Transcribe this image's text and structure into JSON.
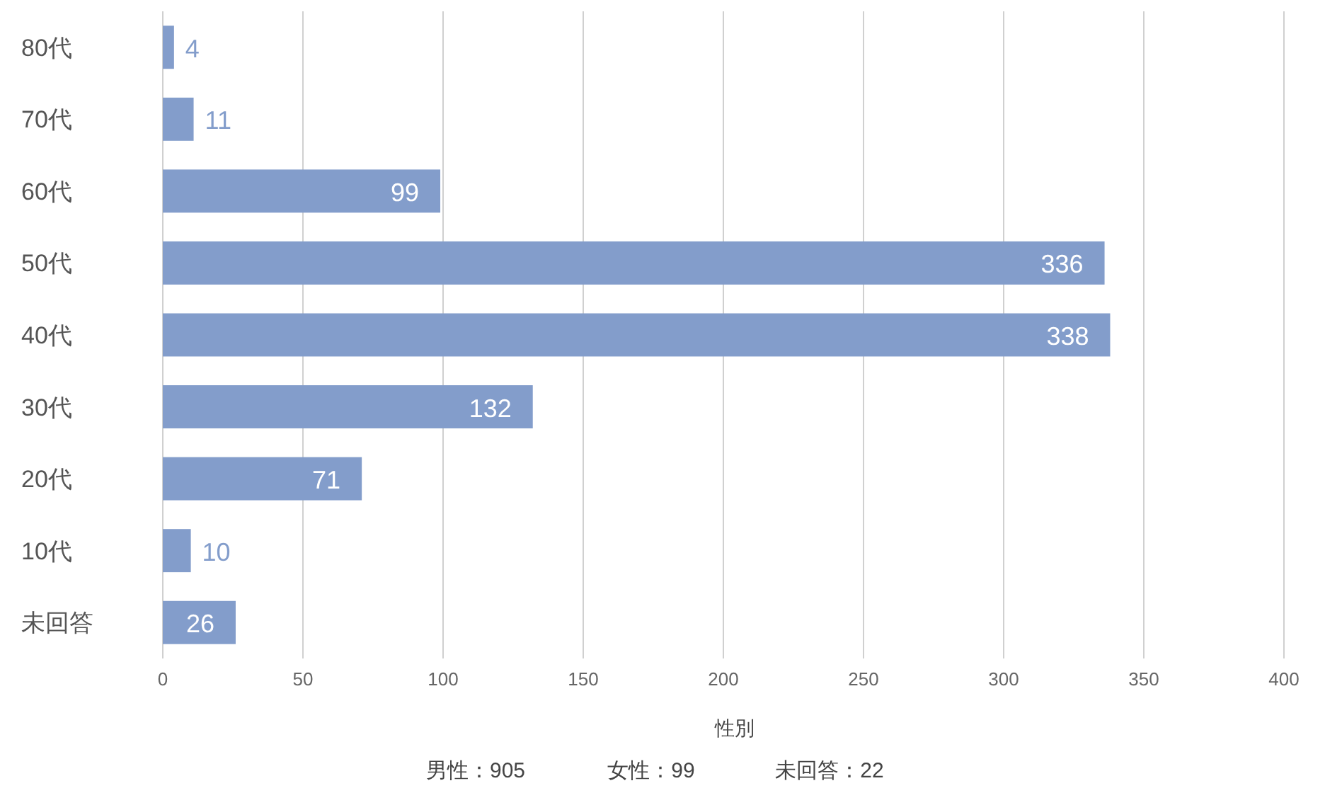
{
  "chart_data": {
    "type": "bar",
    "orientation": "horizontal",
    "xlabel": "性別",
    "categories": [
      "80代",
      "70代",
      "60代",
      "50代",
      "40代",
      "30代",
      "20代",
      "10代",
      "未回答"
    ],
    "values": [
      4,
      11,
      99,
      336,
      338,
      132,
      71,
      10,
      26
    ],
    "color": "#839dcb",
    "xlim": [
      0,
      400
    ],
    "xticks": [
      0,
      50,
      100,
      150,
      200,
      250,
      300,
      350,
      400
    ],
    "grid": "x",
    "data_labels": true,
    "annotations": [
      "男性：905",
      "女性：99",
      "未回答：22"
    ]
  }
}
